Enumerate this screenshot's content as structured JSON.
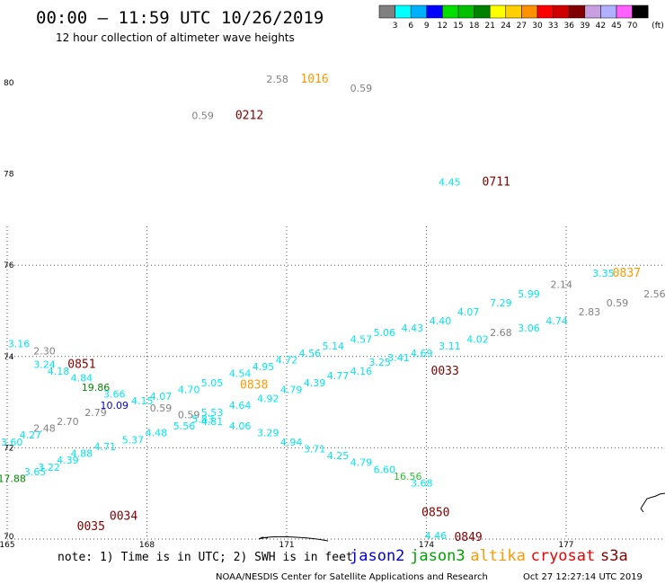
{
  "header": {
    "title": "00:00 — 11:59 UTC 10/26/2019",
    "subtitle": "12 hour collection of altimeter wave heights"
  },
  "legend": {
    "unit": "(ft)",
    "items": [
      {
        "label": "3",
        "color": "#808080"
      },
      {
        "label": "6",
        "color": "#00ffff"
      },
      {
        "label": "9",
        "color": "#00b0ff"
      },
      {
        "label": "12",
        "color": "#0000ff"
      },
      {
        "label": "15",
        "color": "#00e000"
      },
      {
        "label": "18",
        "color": "#00c000"
      },
      {
        "label": "21",
        "color": "#008000"
      },
      {
        "label": "24",
        "color": "#ffff00"
      },
      {
        "label": "27",
        "color": "#ffd000"
      },
      {
        "label": "30",
        "color": "#ff9000"
      },
      {
        "label": "33",
        "color": "#ff0000"
      },
      {
        "label": "36",
        "color": "#d00000"
      },
      {
        "label": "39",
        "color": "#800000"
      },
      {
        "label": "42",
        "color": "#c8a0e0"
      },
      {
        "label": "45",
        "color": "#b0b0ff"
      },
      {
        "label": "70",
        "color": "#ff60ff"
      },
      {
        "label": "",
        "color": "#000000"
      }
    ]
  },
  "axes": {
    "lat_labels": [
      {
        "text": "80",
        "lat": 80
      },
      {
        "text": "78",
        "lat": 78
      },
      {
        "text": "76",
        "lat": 76
      },
      {
        "text": "74",
        "lat": 74
      },
      {
        "text": "72",
        "lat": 72
      },
      {
        "text": "70",
        "lat": 70
      }
    ],
    "lon_labels": [
      {
        "text": "165",
        "lon": 165
      },
      {
        "text": "168",
        "lon": 168
      },
      {
        "text": "171",
        "lon": 171
      },
      {
        "text": "174",
        "lon": 174
      },
      {
        "text": "177",
        "lon": 177
      }
    ]
  },
  "colors": {
    "cyan": "#00e8f0",
    "gray": "#808080",
    "blue": "#0000e0",
    "green": "#008800",
    "brightgreen": "#30c030",
    "maroon": "#800000",
    "orange": "#ff9900"
  },
  "times": [
    {
      "text": "1016",
      "lon": 171.6,
      "lat": 80.0,
      "color": "orange"
    },
    {
      "text": "0212",
      "lon": 170.2,
      "lat": 79.2,
      "color": "maroon"
    },
    {
      "text": "0711",
      "lon": 175.5,
      "lat": 77.75,
      "color": "maroon"
    },
    {
      "text": "0837",
      "lon": 178.3,
      "lat": 75.75,
      "color": "orange"
    },
    {
      "text": "0851",
      "lon": 166.6,
      "lat": 73.75,
      "color": "maroon"
    },
    {
      "text": "0838",
      "lon": 170.3,
      "lat": 73.3,
      "color": "orange"
    },
    {
      "text": "0033",
      "lon": 174.4,
      "lat": 73.6,
      "color": "maroon"
    },
    {
      "text": "0034",
      "lon": 167.5,
      "lat": 70.42,
      "color": "maroon"
    },
    {
      "text": "0035",
      "lon": 166.8,
      "lat": 70.2,
      "color": "maroon"
    },
    {
      "text": "0850",
      "lon": 174.2,
      "lat": 70.5,
      "color": "maroon"
    },
    {
      "text": "0849",
      "lon": 174.9,
      "lat": 69.96,
      "color": "maroon"
    }
  ],
  "heights": [
    {
      "v": "2.58",
      "lon": 170.8,
      "lat": 80.0,
      "c": "gray"
    },
    {
      "v": "0.59",
      "lon": 172.6,
      "lat": 79.8,
      "c": "gray"
    },
    {
      "v": "0.59",
      "lon": 169.2,
      "lat": 79.2,
      "c": "gray"
    },
    {
      "v": "4.45",
      "lon": 174.5,
      "lat": 77.75,
      "c": "cyan"
    },
    {
      "v": "3.35",
      "lon": 177.8,
      "lat": 75.75,
      "c": "cyan"
    },
    {
      "v": "3.18",
      "lon": 179.7,
      "lat": 75.5,
      "c": "cyan"
    },
    {
      "v": "2.14",
      "lon": 176.9,
      "lat": 75.5,
      "c": "gray"
    },
    {
      "v": "2.56",
      "lon": 178.9,
      "lat": 75.3,
      "c": "gray"
    },
    {
      "v": "5.99",
      "lon": 176.2,
      "lat": 75.3,
      "c": "cyan"
    },
    {
      "v": "0.59",
      "lon": 178.1,
      "lat": 75.1,
      "c": "gray"
    },
    {
      "v": "7.29",
      "lon": 175.6,
      "lat": 75.1,
      "c": "cyan"
    },
    {
      "v": "2.83",
      "lon": 177.5,
      "lat": 74.9,
      "c": "gray"
    },
    {
      "v": "4.07",
      "lon": 174.9,
      "lat": 74.9,
      "c": "cyan"
    },
    {
      "v": "4.74",
      "lon": 176.8,
      "lat": 74.7,
      "c": "cyan"
    },
    {
      "v": "4.40",
      "lon": 174.3,
      "lat": 74.7,
      "c": "cyan"
    },
    {
      "v": "3.06",
      "lon": 176.2,
      "lat": 74.55,
      "c": "cyan"
    },
    {
      "v": "4.43",
      "lon": 173.7,
      "lat": 74.55,
      "c": "cyan"
    },
    {
      "v": "2.68",
      "lon": 175.6,
      "lat": 74.45,
      "c": "gray"
    },
    {
      "v": "5.06",
      "lon": 173.1,
      "lat": 74.45,
      "c": "cyan"
    },
    {
      "v": "4.02",
      "lon": 175.1,
      "lat": 74.3,
      "c": "cyan"
    },
    {
      "v": "4.57",
      "lon": 172.6,
      "lat": 74.3,
      "c": "cyan"
    },
    {
      "v": "3.11",
      "lon": 174.5,
      "lat": 74.15,
      "c": "cyan"
    },
    {
      "v": "5.14",
      "lon": 172.0,
      "lat": 74.15,
      "c": "cyan"
    },
    {
      "v": "4.69",
      "lon": 173.9,
      "lat": 74.0,
      "c": "cyan"
    },
    {
      "v": "4.56",
      "lon": 171.5,
      "lat": 74.0,
      "c": "cyan"
    },
    {
      "v": "3.41",
      "lon": 173.4,
      "lat": 73.9,
      "c": "cyan"
    },
    {
      "v": "4.72",
      "lon": 171.0,
      "lat": 73.85,
      "c": "cyan"
    },
    {
      "v": "3.25",
      "lon": 173.0,
      "lat": 73.8,
      "c": "cyan"
    },
    {
      "v": "4.95",
      "lon": 170.5,
      "lat": 73.7,
      "c": "cyan"
    },
    {
      "v": "4.16",
      "lon": 172.6,
      "lat": 73.6,
      "c": "cyan"
    },
    {
      "v": "4.54",
      "lon": 170.0,
      "lat": 73.55,
      "c": "cyan"
    },
    {
      "v": "4.77",
      "lon": 172.1,
      "lat": 73.5,
      "c": "cyan"
    },
    {
      "v": "5.05",
      "lon": 169.4,
      "lat": 73.35,
      "c": "cyan"
    },
    {
      "v": "4.39",
      "lon": 171.6,
      "lat": 73.35,
      "c": "cyan"
    },
    {
      "v": "4.70",
      "lon": 168.9,
      "lat": 73.2,
      "c": "cyan"
    },
    {
      "v": "4.79",
      "lon": 171.1,
      "lat": 73.2,
      "c": "cyan"
    },
    {
      "v": "4.07",
      "lon": 168.3,
      "lat": 73.05,
      "c": "cyan"
    },
    {
      "v": "4.92",
      "lon": 170.6,
      "lat": 73.0,
      "c": "cyan"
    },
    {
      "v": "4.15",
      "lon": 167.9,
      "lat": 72.95,
      "c": "cyan"
    },
    {
      "v": "4.64",
      "lon": 170.0,
      "lat": 72.85,
      "c": "cyan"
    },
    {
      "v": "3.66",
      "lon": 167.3,
      "lat": 73.1,
      "c": "cyan"
    },
    {
      "v": "10.09",
      "lon": 167.3,
      "lat": 72.85,
      "c": "blue"
    },
    {
      "v": "0.59",
      "lon": 168.3,
      "lat": 72.8,
      "c": "gray"
    },
    {
      "v": "5.53",
      "lon": 169.4,
      "lat": 72.7,
      "c": "cyan"
    },
    {
      "v": "2.79",
      "lon": 166.9,
      "lat": 72.7,
      "c": "gray"
    },
    {
      "v": "0.59",
      "lon": 168.9,
      "lat": 72.65,
      "c": "gray"
    },
    {
      "v": "5.83",
      "lon": 169.2,
      "lat": 72.55,
      "c": "cyan"
    },
    {
      "v": "4.81",
      "lon": 169.4,
      "lat": 72.5,
      "c": "cyan"
    },
    {
      "v": "2.70",
      "lon": 166.3,
      "lat": 72.5,
      "c": "gray"
    },
    {
      "v": "5.56",
      "lon": 168.8,
      "lat": 72.4,
      "c": "cyan"
    },
    {
      "v": "4.06",
      "lon": 170.0,
      "lat": 72.4,
      "c": "cyan"
    },
    {
      "v": "2.48",
      "lon": 165.8,
      "lat": 72.35,
      "c": "gray"
    },
    {
      "v": "4.48",
      "lon": 168.2,
      "lat": 72.25,
      "c": "cyan"
    },
    {
      "v": "3.29",
      "lon": 170.6,
      "lat": 72.25,
      "c": "cyan"
    },
    {
      "v": "4.27",
      "lon": 165.5,
      "lat": 72.2,
      "c": "cyan"
    },
    {
      "v": "5.37",
      "lon": 167.7,
      "lat": 72.1,
      "c": "cyan"
    },
    {
      "v": "3.60",
      "lon": 165.1,
      "lat": 72.05,
      "c": "cyan"
    },
    {
      "v": "4.94",
      "lon": 171.1,
      "lat": 72.05,
      "c": "cyan"
    },
    {
      "v": "4.71",
      "lon": 167.1,
      "lat": 71.95,
      "c": "cyan"
    },
    {
      "v": "3.71",
      "lon": 171.6,
      "lat": 71.9,
      "c": "cyan"
    },
    {
      "v": "4.88",
      "lon": 166.6,
      "lat": 71.8,
      "c": "cyan"
    },
    {
      "v": "4.25",
      "lon": 172.1,
      "lat": 71.75,
      "c": "cyan"
    },
    {
      "v": "4.39",
      "lon": 166.3,
      "lat": 71.65,
      "c": "cyan"
    },
    {
      "v": "4.79",
      "lon": 172.6,
      "lat": 71.6,
      "c": "cyan"
    },
    {
      "v": "3.22",
      "lon": 165.9,
      "lat": 71.5,
      "c": "cyan"
    },
    {
      "v": "6.60",
      "lon": 173.1,
      "lat": 71.45,
      "c": "cyan"
    },
    {
      "v": "3.65",
      "lon": 165.6,
      "lat": 71.4,
      "c": "cyan"
    },
    {
      "v": "16.56",
      "lon": 173.6,
      "lat": 71.3,
      "c": "brightgreen"
    },
    {
      "v": "17.88",
      "lon": 165.1,
      "lat": 71.25,
      "c": "green"
    },
    {
      "v": "3.68",
      "lon": 173.9,
      "lat": 71.15,
      "c": "cyan"
    },
    {
      "v": "4.46",
      "lon": 174.2,
      "lat": 70.0,
      "c": "cyan"
    },
    {
      "v": "3.16",
      "lon": 165.25,
      "lat": 74.2,
      "c": "cyan"
    },
    {
      "v": "2.30",
      "lon": 165.8,
      "lat": 74.05,
      "c": "gray"
    },
    {
      "v": "3.24",
      "lon": 165.8,
      "lat": 73.75,
      "c": "cyan"
    },
    {
      "v": "4.18",
      "lon": 166.1,
      "lat": 73.6,
      "c": "cyan"
    },
    {
      "v": "4.84",
      "lon": 166.6,
      "lat": 73.45,
      "c": "cyan"
    },
    {
      "v": "19.86",
      "lon": 166.9,
      "lat": 73.25,
      "c": "green"
    }
  ],
  "footer": {
    "note": "note: 1) Time is in UTC; 2) SWH is in feet",
    "satellites": [
      {
        "name": "jason2",
        "color": "#0000dd"
      },
      {
        "name": "jason3",
        "color": "#00a000"
      },
      {
        "name": "altika",
        "color": "#ff9900"
      },
      {
        "name": "cryosat",
        "color": "#ee0000"
      },
      {
        "name": "s3a",
        "color": "#800000"
      }
    ],
    "credit": "NOAA/NESDIS Center for Satellite Applications and Research",
    "generated": "Oct 27 12:27:14 UTC 2019"
  }
}
